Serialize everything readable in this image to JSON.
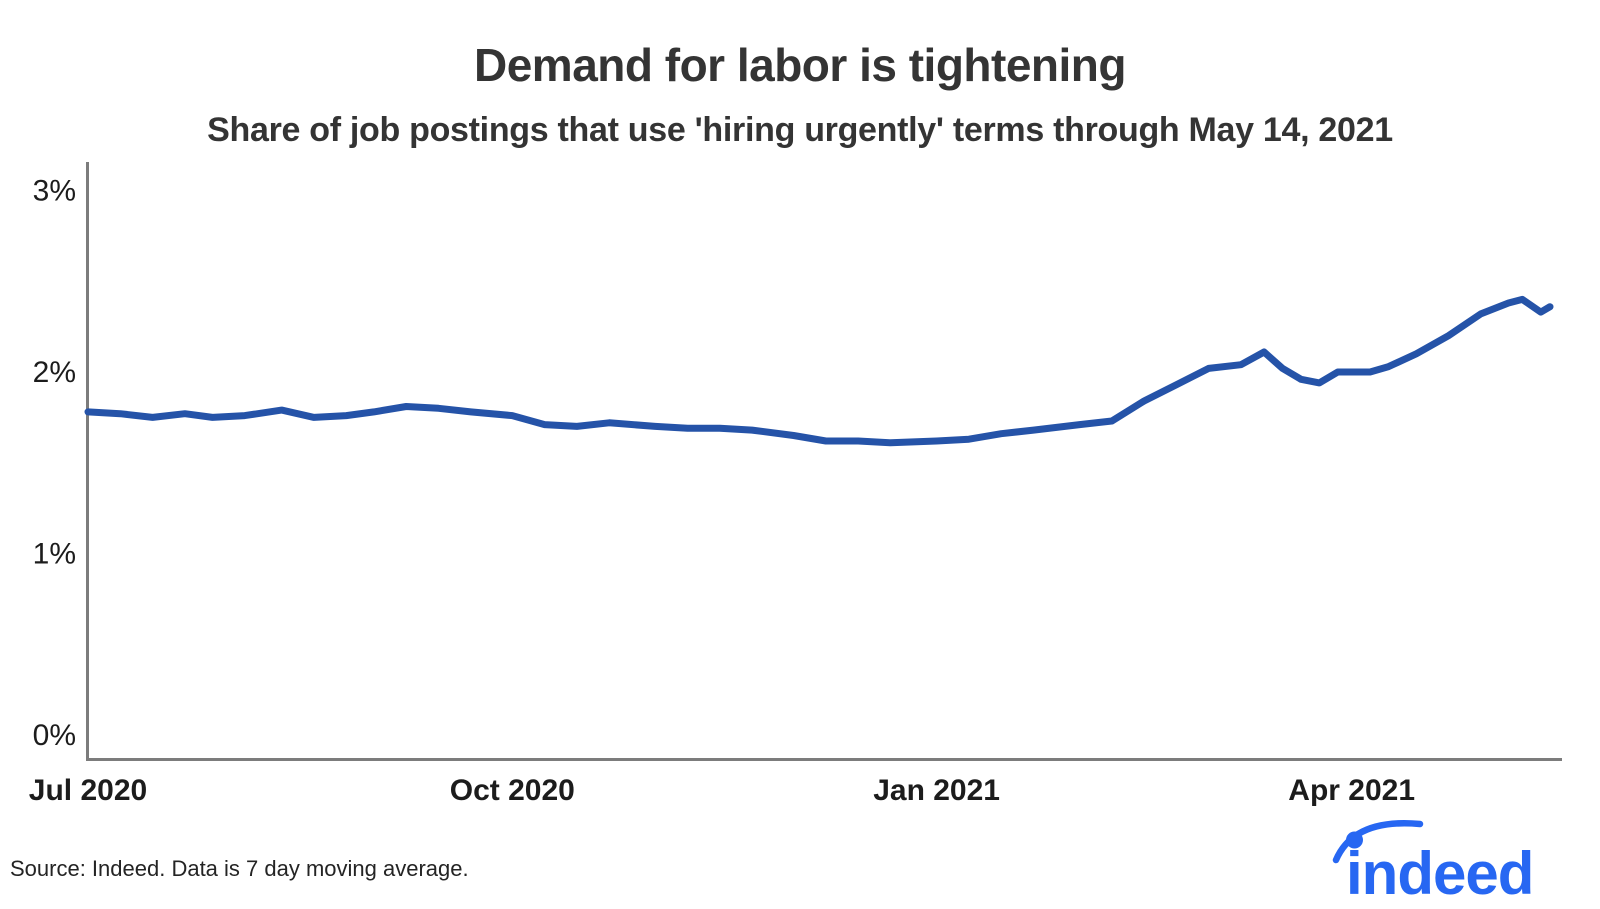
{
  "page": {
    "title": "Demand for labor is tightening",
    "subtitle": "Share of job postings that use 'hiring urgently' terms through May 14, 2021",
    "source_note": "Source: Indeed. Data is 7 day moving average.",
    "logo_text": "indeed"
  },
  "colors": {
    "line_blue": "#2553a8",
    "logo_blue": "#2767f2",
    "axis_gray": "#7c7c7c",
    "text_dark": "#343434"
  },
  "chart_data": {
    "type": "line",
    "title": "Demand for labor is tightening",
    "subtitle": "Share of job postings that use 'hiring urgently' terms through May 14, 2021",
    "xlabel": "",
    "ylabel": "",
    "ylim": [
      0,
      3
    ],
    "y_tick_format": "percent",
    "grid": false,
    "legend": "none",
    "x_range": [
      "2020-07-01",
      "2021-05-14"
    ],
    "y_ticks": [
      {
        "label": "3%",
        "value": 3
      },
      {
        "label": "2%",
        "value": 2
      },
      {
        "label": "1%",
        "value": 1
      },
      {
        "label": "0%",
        "value": 0
      }
    ],
    "x_ticks": [
      {
        "label": "Jul 2020",
        "date": "2020-07-01"
      },
      {
        "label": "Oct 2020",
        "date": "2020-10-01"
      },
      {
        "label": "Jan 2021",
        "date": "2021-01-01"
      },
      {
        "label": "Apr 2021",
        "date": "2021-04-01"
      }
    ],
    "series": [
      {
        "name": "Share of job postings using 'hiring urgently' terms (7-day moving average, %)",
        "points": [
          [
            "2020-07-01",
            1.78
          ],
          [
            "2020-07-08",
            1.77
          ],
          [
            "2020-07-15",
            1.75
          ],
          [
            "2020-07-22",
            1.77
          ],
          [
            "2020-07-28",
            1.75
          ],
          [
            "2020-08-04",
            1.76
          ],
          [
            "2020-08-12",
            1.79
          ],
          [
            "2020-08-19",
            1.75
          ],
          [
            "2020-08-26",
            1.76
          ],
          [
            "2020-09-01",
            1.78
          ],
          [
            "2020-09-08",
            1.81
          ],
          [
            "2020-09-15",
            1.8
          ],
          [
            "2020-09-22",
            1.78
          ],
          [
            "2020-10-01",
            1.76
          ],
          [
            "2020-10-08",
            1.71
          ],
          [
            "2020-10-15",
            1.7
          ],
          [
            "2020-10-22",
            1.72
          ],
          [
            "2020-11-01",
            1.7
          ],
          [
            "2020-11-08",
            1.69
          ],
          [
            "2020-11-15",
            1.69
          ],
          [
            "2020-11-22",
            1.68
          ],
          [
            "2020-12-01",
            1.65
          ],
          [
            "2020-12-08",
            1.62
          ],
          [
            "2020-12-15",
            1.62
          ],
          [
            "2020-12-22",
            1.61
          ],
          [
            "2021-01-01",
            1.62
          ],
          [
            "2021-01-08",
            1.63
          ],
          [
            "2021-01-15",
            1.66
          ],
          [
            "2021-01-22",
            1.68
          ],
          [
            "2021-02-01",
            1.71
          ],
          [
            "2021-02-08",
            1.73
          ],
          [
            "2021-02-15",
            1.84
          ],
          [
            "2021-02-22",
            1.93
          ],
          [
            "2021-03-01",
            2.02
          ],
          [
            "2021-03-08",
            2.04
          ],
          [
            "2021-03-13",
            2.11
          ],
          [
            "2021-03-17",
            2.02
          ],
          [
            "2021-03-21",
            1.96
          ],
          [
            "2021-03-25",
            1.94
          ],
          [
            "2021-03-29",
            2.0
          ],
          [
            "2021-04-05",
            2.0
          ],
          [
            "2021-04-09",
            2.03
          ],
          [
            "2021-04-15",
            2.1
          ],
          [
            "2021-04-22",
            2.2
          ],
          [
            "2021-04-29",
            2.32
          ],
          [
            "2021-05-05",
            2.38
          ],
          [
            "2021-05-08",
            2.4
          ],
          [
            "2021-05-12",
            2.33
          ],
          [
            "2021-05-14",
            2.36
          ]
        ]
      }
    ],
    "source": "Source: Indeed. Data is 7 day moving average."
  }
}
